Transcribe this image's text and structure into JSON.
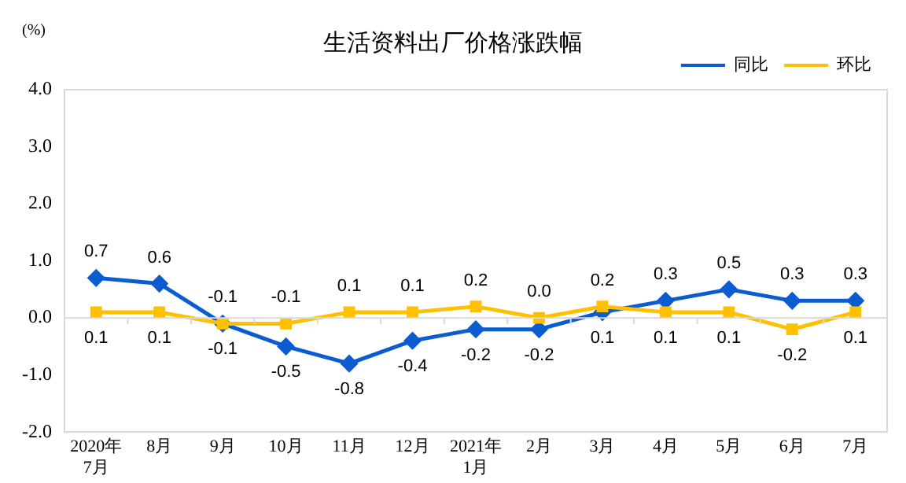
{
  "chart_data": {
    "type": "line",
    "title": "生活资料出厂价格涨跌幅",
    "ylabel": "(%)",
    "categories": [
      "2020年\n7月",
      "8月",
      "9月",
      "10月",
      "11月",
      "12月",
      "2021年\n1月",
      "2月",
      "3月",
      "4月",
      "5月",
      "6月",
      "7月"
    ],
    "series": [
      {
        "name": "同比",
        "color": "#0b5cd0",
        "marker": "diamond",
        "values": [
          0.7,
          0.6,
          -0.1,
          -0.5,
          -0.8,
          -0.4,
          -0.2,
          -0.2,
          0.1,
          0.3,
          0.5,
          0.3,
          0.3
        ],
        "value_labels": [
          "0.7",
          "0.6",
          "-0.1",
          "-0.5",
          "-0.8",
          "-0.4",
          "-0.2",
          "-0.2",
          "0.1",
          "0.3",
          "0.5",
          "0.3",
          "0.3"
        ]
      },
      {
        "name": "环比",
        "color": "#ffc000",
        "marker": "square",
        "values": [
          0.1,
          0.1,
          -0.1,
          -0.1,
          0.1,
          0.1,
          0.2,
          0.0,
          0.2,
          0.1,
          0.1,
          -0.2,
          0.1
        ],
        "value_labels": [
          "0.1",
          "0.1",
          "-0.1",
          "-0.1",
          "0.1",
          "0.1",
          "0.2",
          "0.0",
          "0.2",
          "0.1",
          "0.1",
          "-0.2",
          "0.1"
        ]
      }
    ],
    "ylim": [
      -2,
      4
    ],
    "yticks": [
      {
        "value": -2,
        "label": "-2.0"
      },
      {
        "value": -1,
        "label": "-1.0"
      },
      {
        "value": 0,
        "label": "0.0"
      },
      {
        "value": 1,
        "label": "1.0"
      },
      {
        "value": 2,
        "label": "2.0"
      },
      {
        "value": 3,
        "label": "3.0"
      },
      {
        "value": 4,
        "label": "4.0"
      }
    ],
    "ref_lines": [
      {
        "axis": "y",
        "value": 0,
        "color": "#d9d9d9"
      }
    ],
    "grid": false,
    "legend": "top"
  }
}
